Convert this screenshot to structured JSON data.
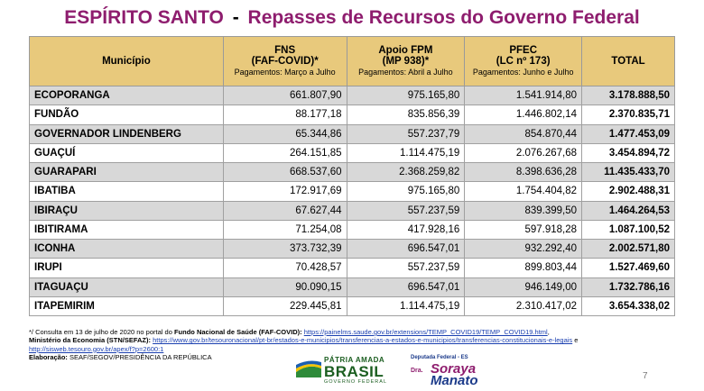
{
  "title": {
    "state": "ESPÍRITO SANTO",
    "dash": "-",
    "subtitle": "Repasses de Recursos do Governo Federal"
  },
  "table": {
    "headers": [
      {
        "main": "Município",
        "sub": "",
        "note": ""
      },
      {
        "main": "FNS",
        "sub": "(FAF-COVID)*",
        "note": "Pagamentos: Março a Julho"
      },
      {
        "main": "Apoio FPM",
        "sub": "(MP 938)*",
        "note": "Pagamentos: Abril a Julho"
      },
      {
        "main": "PFEC",
        "sub": "(LC nº 173)",
        "note": "Pagamentos: Junho e Julho"
      },
      {
        "main": "TOTAL",
        "sub": "",
        "note": ""
      }
    ],
    "rows": [
      {
        "municipio": "ECOPORANGA",
        "fns": "661.807,90",
        "fpm": "975.165,80",
        "pfec": "1.541.914,80",
        "total": "3.178.888,50"
      },
      {
        "municipio": "FUNDÃO",
        "fns": "88.177,18",
        "fpm": "835.856,39",
        "pfec": "1.446.802,14",
        "total": "2.370.835,71"
      },
      {
        "municipio": "GOVERNADOR LINDENBERG",
        "fns": "65.344,86",
        "fpm": "557.237,79",
        "pfec": "854.870,44",
        "total": "1.477.453,09"
      },
      {
        "municipio": "GUAÇUÍ",
        "fns": "264.151,85",
        "fpm": "1.114.475,19",
        "pfec": "2.076.267,68",
        "total": "3.454.894,72"
      },
      {
        "municipio": "GUARAPARI",
        "fns": "668.537,60",
        "fpm": "2.368.259,82",
        "pfec": "8.398.636,28",
        "total": "11.435.433,70"
      },
      {
        "municipio": "IBATIBA",
        "fns": "172.917,69",
        "fpm": "975.165,80",
        "pfec": "1.754.404,82",
        "total": "2.902.488,31"
      },
      {
        "municipio": "IBIRAÇU",
        "fns": "67.627,44",
        "fpm": "557.237,59",
        "pfec": "839.399,50",
        "total": "1.464.264,53"
      },
      {
        "municipio": "IBITIRAMA",
        "fns": "71.254,08",
        "fpm": "417.928,16",
        "pfec": "597.918,28",
        "total": "1.087.100,52"
      },
      {
        "municipio": "ICONHA",
        "fns": "373.732,39",
        "fpm": "696.547,01",
        "pfec": "932.292,40",
        "total": "2.002.571,80"
      },
      {
        "municipio": "IRUPI",
        "fns": "70.428,57",
        "fpm": "557.237,59",
        "pfec": "899.803,44",
        "total": "1.527.469,60"
      },
      {
        "municipio": "ITAGUAÇU",
        "fns": "90.090,15",
        "fpm": "696.547,01",
        "pfec": "946.149,00",
        "total": "1.732.786,16"
      },
      {
        "municipio": "ITAPEMIRIM",
        "fns": "229.445,81",
        "fpm": "1.114.475,19",
        "pfec": "2.310.417,02",
        "total": "3.654.338,02"
      }
    ]
  },
  "footnotes": {
    "line1_prefix": "*/ Consulta em 13 de julho de 2020 no portal do ",
    "line1_bold": "Fundo Nacional de Saúde (FAF-COVID):",
    "line1_link": "https://painelms.saude.gov.br/extensions/TEMP_COVID19/TEMP_COVID19.html",
    "line1_suffix": ",",
    "line2_bold": "Ministério da Economia (STN/SEFAZ):",
    "line2_link": "https://www.gov.br/tesouronacional/pt-br/estados-e-municipios/transferencias-a-estados-e-municipios/transferencias-constitucionais-e-legais",
    "line2_suffix": " e",
    "line3_link": "http://sisweb.tesouro.gov.br/apex/f?p=2600:1",
    "line4_bold": "Elaboração:",
    "line4_text": " SEAF/SEGOV/PRESIDÊNCIA DA REPÚBLICA"
  },
  "logos": {
    "brasil_top": "PÁTRIA AMADA",
    "brasil_main": "BRASIL",
    "brasil_sub": "GOVERNO FEDERAL",
    "dep_top": "Deputada Federal - ES",
    "dep_dra": "Dra.",
    "dep_name1": "Soraya",
    "dep_name2": "Manato"
  },
  "page_number": "7",
  "colors": {
    "title": "#8e1d6e",
    "header_bg": "#e8c97c",
    "row_shade": "#d8d8d8",
    "link": "#1a3fb0"
  }
}
